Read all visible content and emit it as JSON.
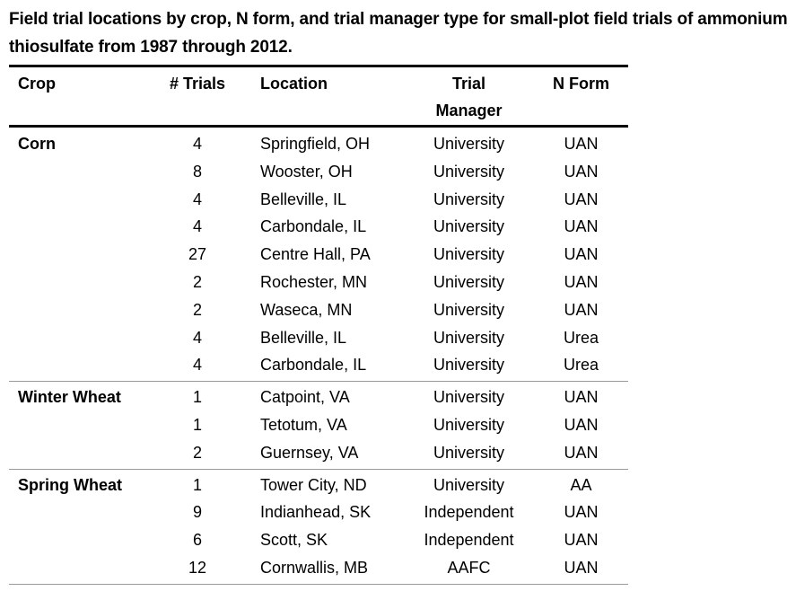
{
  "caption": "Field trial locations by crop, N form, and trial manager type for small-plot field trials of ammonium thiosulfate from 1987 through 2012.",
  "headers": {
    "crop": "Crop",
    "trials": "# Trials",
    "location": "Location",
    "manager_line1": "Trial",
    "manager_line2": "Manager",
    "nform": "N Form"
  },
  "groups": [
    {
      "crop": "Corn",
      "rows": [
        {
          "trials": "4",
          "location": "Springfield, OH",
          "manager": "University",
          "nform": "UAN"
        },
        {
          "trials": "8",
          "location": "Wooster, OH",
          "manager": "University",
          "nform": "UAN"
        },
        {
          "trials": "4",
          "location": "Belleville, IL",
          "manager": "University",
          "nform": "UAN"
        },
        {
          "trials": "4",
          "location": "Carbondale, IL",
          "manager": "University",
          "nform": "UAN"
        },
        {
          "trials": "27",
          "location": "Centre Hall, PA",
          "manager": "University",
          "nform": "UAN"
        },
        {
          "trials": "2",
          "location": "Rochester, MN",
          "manager": "University",
          "nform": "UAN"
        },
        {
          "trials": "2",
          "location": "Waseca, MN",
          "manager": "University",
          "nform": "UAN"
        },
        {
          "trials": "4",
          "location": "Belleville, IL",
          "manager": "University",
          "nform": "Urea"
        },
        {
          "trials": "4",
          "location": "Carbondale, IL",
          "manager": "University",
          "nform": "Urea"
        }
      ]
    },
    {
      "crop": "Winter Wheat",
      "rows": [
        {
          "trials": "1",
          "location": "Catpoint, VA",
          "manager": "University",
          "nform": "UAN"
        },
        {
          "trials": "1",
          "location": "Tetotum, VA",
          "manager": "University",
          "nform": "UAN"
        },
        {
          "trials": "2",
          "location": "Guernsey, VA",
          "manager": "University",
          "nform": "UAN"
        }
      ]
    },
    {
      "crop": "Spring Wheat",
      "rows": [
        {
          "trials": "1",
          "location": "Tower City, ND",
          "manager": "University",
          "nform": "AA"
        },
        {
          "trials": "9",
          "location": "Indianhead, SK",
          "manager": "Independent",
          "nform": "UAN"
        },
        {
          "trials": "6",
          "location": "Scott, SK",
          "manager": "Independent",
          "nform": "UAN"
        },
        {
          "trials": "12",
          "location": "Cornwallis, MB",
          "manager": "AAFC",
          "nform": "UAN"
        }
      ]
    }
  ]
}
